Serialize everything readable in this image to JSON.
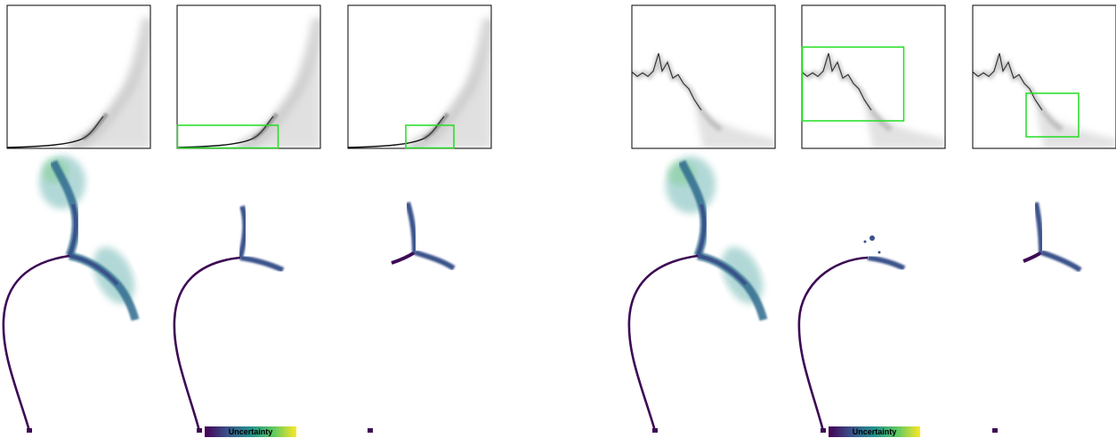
{
  "colorbar": {
    "label": "Uncertainty",
    "stops": [
      "#440154",
      "#3b528b",
      "#21918c",
      "#5ec962",
      "#fde725"
    ]
  },
  "colors": {
    "highlight_box": "#22dd22",
    "trajectory_low": "#3d0a55",
    "trajectory_mid": "#33568b",
    "trajectory_high": "#2aa68a",
    "density_dark": "#111111",
    "density_light": "#bbbbbb"
  },
  "groups": [
    {
      "name": "left",
      "panels": [
        {
          "name": "full"
        },
        {
          "name": "zoom-1"
        },
        {
          "name": "zoom-2"
        }
      ]
    },
    {
      "name": "right",
      "panels": [
        {
          "name": "full"
        },
        {
          "name": "zoom-1"
        },
        {
          "name": "zoom-2"
        }
      ]
    }
  ]
}
